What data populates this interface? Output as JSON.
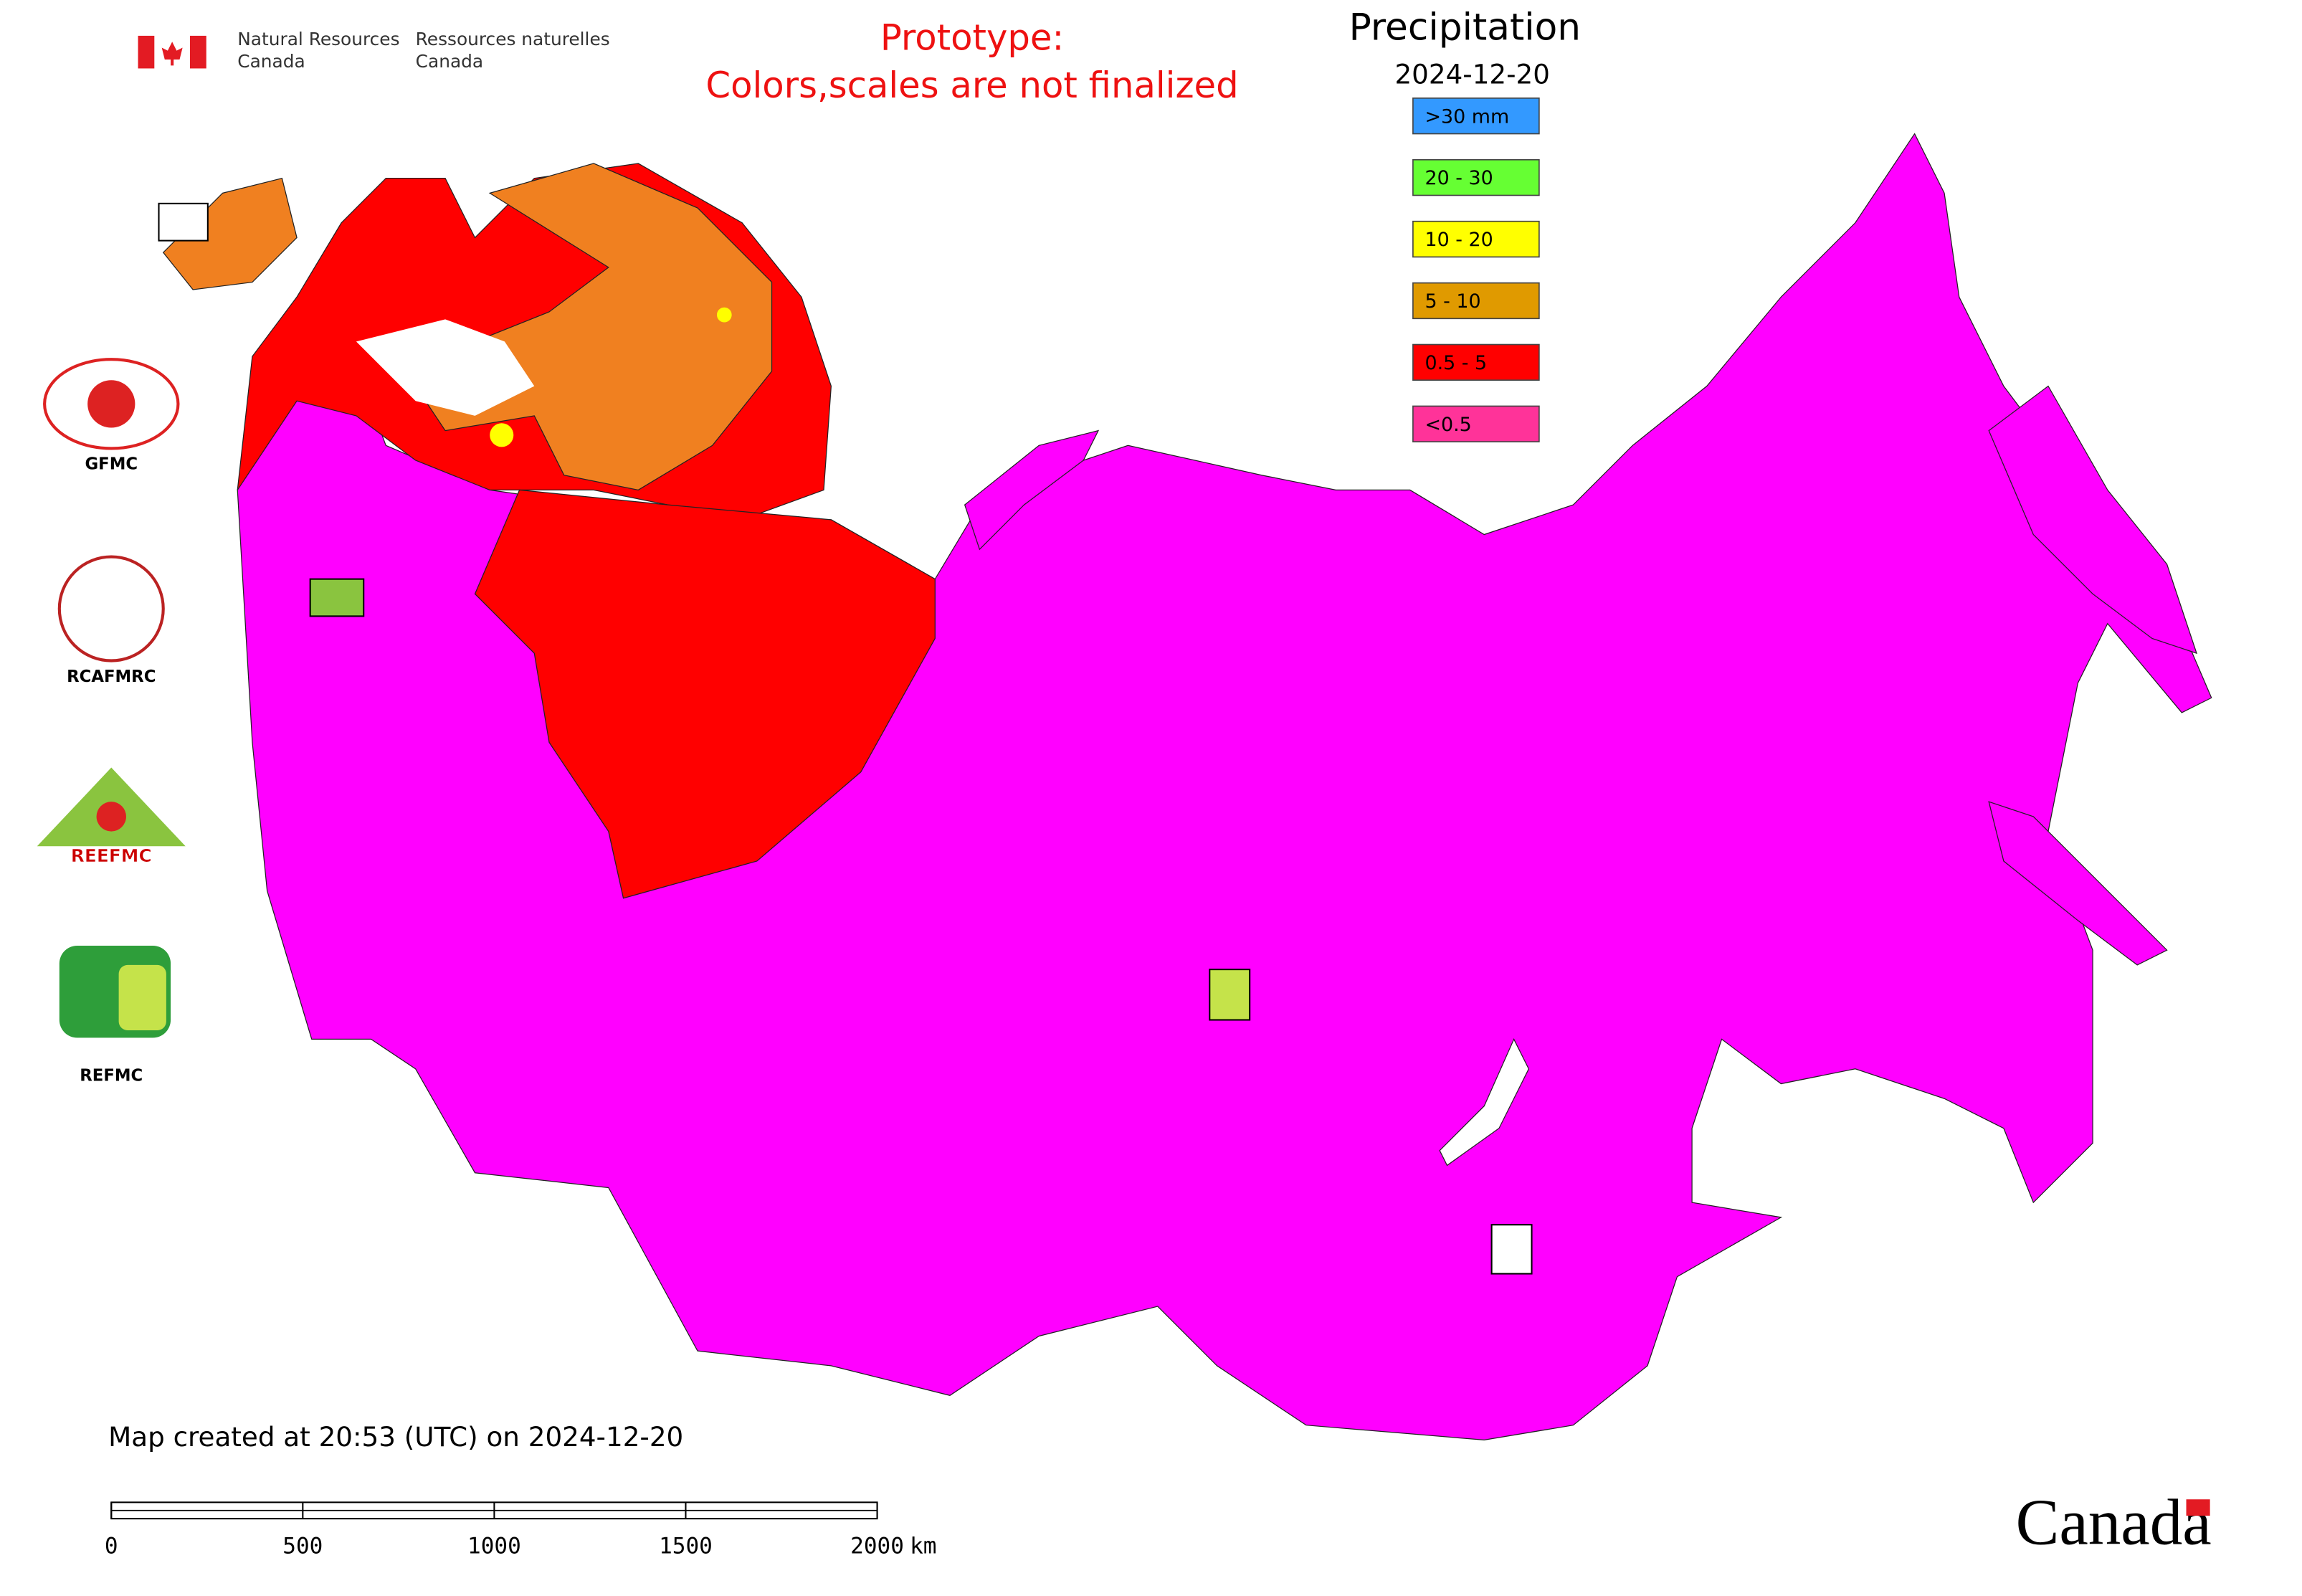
{
  "header": {
    "agency_en": [
      "Natural Resources",
      "Canada"
    ],
    "agency_fr": [
      "Ressources naturelles",
      "Canada"
    ],
    "notice": [
      "Prototype:",
      "Colors,scales are not finalized"
    ]
  },
  "legend": {
    "title": "Precipitation",
    "date": "2024-12-20",
    "items": [
      {
        "label": ">30 mm",
        "color": "#3399ff"
      },
      {
        "label": "20 - 30",
        "color": "#66ff33"
      },
      {
        "label": "10 - 20",
        "color": "#ffff00"
      },
      {
        "label": "5 - 10",
        "color": "#e09a00"
      },
      {
        "label": "0.5 - 5",
        "color": "#ff0000"
      },
      {
        "label": "<0.5",
        "color": "#ff3399"
      }
    ]
  },
  "logos": [
    "GFMC",
    "RCAFMRC",
    "REEFMC",
    "REFMC"
  ],
  "footer": "Map created at 20:53 (UTC) on 2024-12-20",
  "scale_bar": {
    "ticks": [
      0,
      500,
      1000,
      1500,
      2000
    ],
    "unit": "km"
  },
  "wordmark": "Canada"
}
